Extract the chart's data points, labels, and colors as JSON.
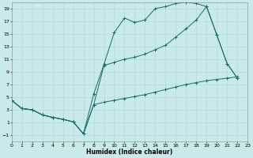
{
  "xlabel": "Humidex (Indice chaleur)",
  "xlim": [
    0,
    23
  ],
  "ylim": [
    -2,
    20
  ],
  "yticks": [
    -1,
    1,
    3,
    5,
    7,
    9,
    11,
    13,
    15,
    17,
    19
  ],
  "xticks": [
    0,
    1,
    2,
    3,
    4,
    5,
    6,
    7,
    8,
    9,
    10,
    11,
    12,
    13,
    14,
    15,
    16,
    17,
    18,
    19,
    20,
    21,
    22,
    23
  ],
  "background_color": "#c8eaea",
  "grid_color": "#b0d8d8",
  "line_color": "#1a6b6b",
  "line1_x": [
    0,
    1,
    2,
    3,
    4,
    5,
    6,
    7,
    8,
    9,
    10,
    11,
    12,
    13,
    14,
    15,
    16,
    17,
    18,
    19,
    20,
    21,
    22
  ],
  "line1_y": [
    4.5,
    3.2,
    3.0,
    2.2,
    1.8,
    1.5,
    1.1,
    -0.8,
    5.5,
    10.2,
    15.2,
    17.5,
    16.8,
    17.2,
    19.0,
    19.3,
    19.8,
    20.0,
    19.8,
    19.3,
    14.8,
    10.3,
    8.0
  ],
  "line2_x": [
    0,
    1,
    2,
    3,
    4,
    5,
    6,
    7,
    8,
    9,
    10,
    11,
    12,
    13,
    14,
    15,
    16,
    17,
    18,
    19,
    20,
    21,
    22
  ],
  "line2_y": [
    4.5,
    3.2,
    3.0,
    2.2,
    1.8,
    1.5,
    1.1,
    -0.8,
    3.8,
    10.0,
    10.5,
    11.0,
    11.3,
    11.8,
    12.5,
    13.2,
    14.5,
    15.8,
    17.2,
    19.3,
    14.8,
    10.3,
    8.0
  ],
  "line3_x": [
    0,
    1,
    2,
    3,
    4,
    5,
    6,
    7,
    8,
    9,
    10,
    11,
    12,
    13,
    14,
    15,
    16,
    17,
    18,
    19,
    20,
    21,
    22
  ],
  "line3_y": [
    4.5,
    3.2,
    3.0,
    2.2,
    1.8,
    1.5,
    1.1,
    -0.8,
    3.8,
    4.2,
    4.5,
    4.8,
    5.1,
    5.4,
    5.8,
    6.2,
    6.6,
    7.0,
    7.3,
    7.6,
    7.8,
    8.0,
    8.2
  ]
}
